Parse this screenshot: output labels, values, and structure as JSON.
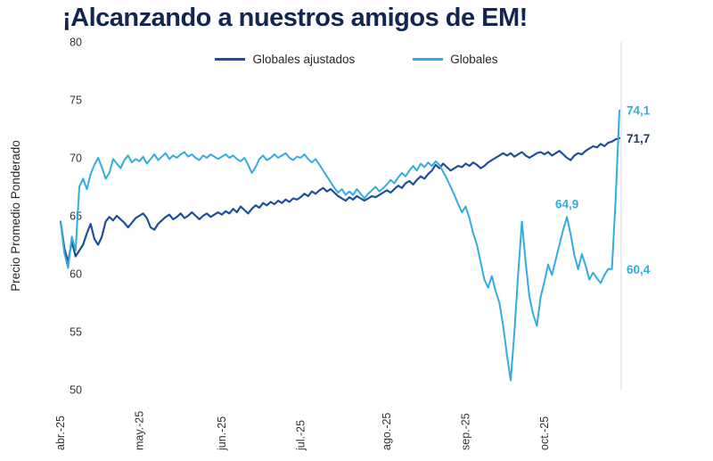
{
  "colors": {
    "title": "#12264F",
    "dark_line": "#1F4E9C",
    "light_line": "#33ACE0",
    "plot_border": "#D9D9D9",
    "tick_text": "#333333"
  },
  "chart_data": {
    "type": "line",
    "title": "¡Alcanzando a nuestros amigos de EM!",
    "xlabel": "",
    "ylabel": "Precio Promedio Ponderado",
    "ylim": [
      50,
      80
    ],
    "yticks": [
      80,
      75,
      70,
      65,
      60,
      55,
      50
    ],
    "grid": false,
    "legend_position": "top",
    "categories": [
      "abr.-25",
      "may.-25",
      "jun.-25",
      "jul.-25",
      "ago.-25",
      "sep.-25",
      "oct.-25"
    ],
    "month_start_indices": [
      0,
      21,
      43,
      64,
      87,
      108,
      129
    ],
    "series": [
      {
        "name": "Globales ajustados",
        "color": "#1F4E9C",
        "values": [
          64.5,
          62.2,
          61.0,
          62.8,
          61.5,
          62.0,
          62.5,
          63.5,
          64.3,
          63.0,
          62.5,
          63.2,
          64.5,
          64.9,
          64.6,
          65.0,
          64.7,
          64.4,
          64.0,
          64.4,
          64.8,
          65.0,
          65.2,
          64.8,
          64.0,
          63.8,
          64.3,
          64.6,
          64.9,
          65.1,
          64.7,
          64.9,
          65.2,
          64.8,
          65.0,
          65.3,
          65.0,
          64.7,
          65.0,
          65.2,
          64.9,
          65.1,
          65.3,
          65.1,
          65.4,
          65.2,
          65.6,
          65.3,
          65.8,
          65.5,
          65.2,
          65.6,
          65.9,
          65.7,
          66.1,
          65.9,
          66.2,
          66.0,
          66.3,
          66.1,
          66.4,
          66.2,
          66.5,
          66.4,
          66.6,
          66.9,
          66.7,
          67.1,
          66.9,
          67.2,
          67.4,
          67.1,
          67.3,
          67.0,
          66.7,
          66.5,
          66.3,
          66.6,
          66.4,
          66.7,
          66.5,
          66.3,
          66.5,
          66.7,
          66.6,
          66.8,
          67.0,
          67.2,
          67.0,
          67.3,
          67.6,
          67.4,
          67.8,
          68.0,
          67.7,
          68.1,
          68.4,
          68.2,
          68.6,
          68.9,
          69.4,
          69.1,
          69.5,
          69.2,
          68.9,
          69.1,
          69.3,
          69.2,
          69.5,
          69.3,
          69.6,
          69.4,
          69.1,
          69.3,
          69.6,
          69.8,
          70.0,
          70.2,
          70.4,
          70.2,
          70.4,
          70.1,
          70.3,
          70.5,
          70.2,
          70.0,
          70.2,
          70.4,
          70.5,
          70.3,
          70.5,
          70.2,
          70.4,
          70.6,
          70.3,
          70.0,
          69.8,
          70.2,
          70.4,
          70.3,
          70.6,
          70.8,
          71.0,
          70.9,
          71.2,
          71.0,
          71.3,
          71.4,
          71.6,
          71.7
        ]
      },
      {
        "name": "Globales",
        "color": "#33ACE0",
        "values": [
          64.5,
          61.8,
          60.5,
          63.2,
          62.0,
          67.5,
          68.2,
          67.3,
          68.6,
          69.4,
          70.0,
          69.2,
          68.2,
          68.7,
          69.9,
          69.5,
          69.1,
          69.8,
          70.2,
          69.6,
          69.9,
          69.7,
          70.1,
          69.5,
          69.9,
          70.3,
          69.8,
          70.1,
          70.4,
          69.9,
          70.2,
          70.0,
          70.3,
          70.5,
          70.1,
          70.3,
          70.0,
          69.8,
          70.2,
          70.0,
          70.3,
          70.1,
          69.9,
          70.1,
          70.3,
          70.0,
          70.2,
          69.9,
          69.7,
          70.0,
          69.4,
          68.7,
          69.2,
          69.9,
          70.2,
          69.8,
          70.0,
          70.3,
          70.0,
          70.2,
          70.4,
          70.0,
          69.8,
          70.1,
          70.0,
          70.3,
          69.9,
          69.6,
          69.9,
          69.4,
          68.9,
          68.4,
          67.9,
          67.4,
          67.0,
          67.3,
          66.8,
          67.1,
          66.8,
          67.3,
          66.9,
          66.5,
          66.9,
          67.2,
          67.5,
          67.1,
          67.4,
          67.7,
          68.1,
          67.8,
          68.3,
          68.7,
          68.4,
          68.9,
          69.3,
          68.9,
          69.5,
          69.2,
          69.6,
          69.3,
          69.7,
          69.4,
          68.8,
          68.2,
          67.5,
          66.8,
          66.0,
          65.3,
          65.8,
          64.8,
          63.5,
          62.5,
          61.0,
          59.5,
          58.8,
          59.8,
          58.5,
          57.5,
          55.5,
          53.0,
          50.8,
          55.0,
          60.0,
          64.5,
          61.0,
          58.0,
          56.5,
          55.5,
          58.0,
          59.3,
          60.8,
          59.9,
          61.2,
          62.5,
          63.8,
          64.9,
          63.4,
          61.6,
          60.4,
          61.7,
          60.7,
          59.5,
          60.1,
          59.6,
          59.2,
          59.9,
          60.4,
          60.4,
          66.5,
          74.1
        ]
      }
    ],
    "annotations": [
      {
        "label": "74,1",
        "value": 74.1,
        "series": 1,
        "color": "#33ACE0",
        "placement": "right-edge"
      },
      {
        "label": "71,7",
        "value": 71.7,
        "series": 0,
        "color": "#1F3864",
        "placement": "right-edge"
      },
      {
        "label": "64,9",
        "value": 64.9,
        "series": 1,
        "color": "#33ACE0",
        "placement": "above",
        "index": 135
      },
      {
        "label": "60,4",
        "value": 60.4,
        "series": 1,
        "color": "#33ACE0",
        "placement": "right-edge"
      }
    ]
  }
}
